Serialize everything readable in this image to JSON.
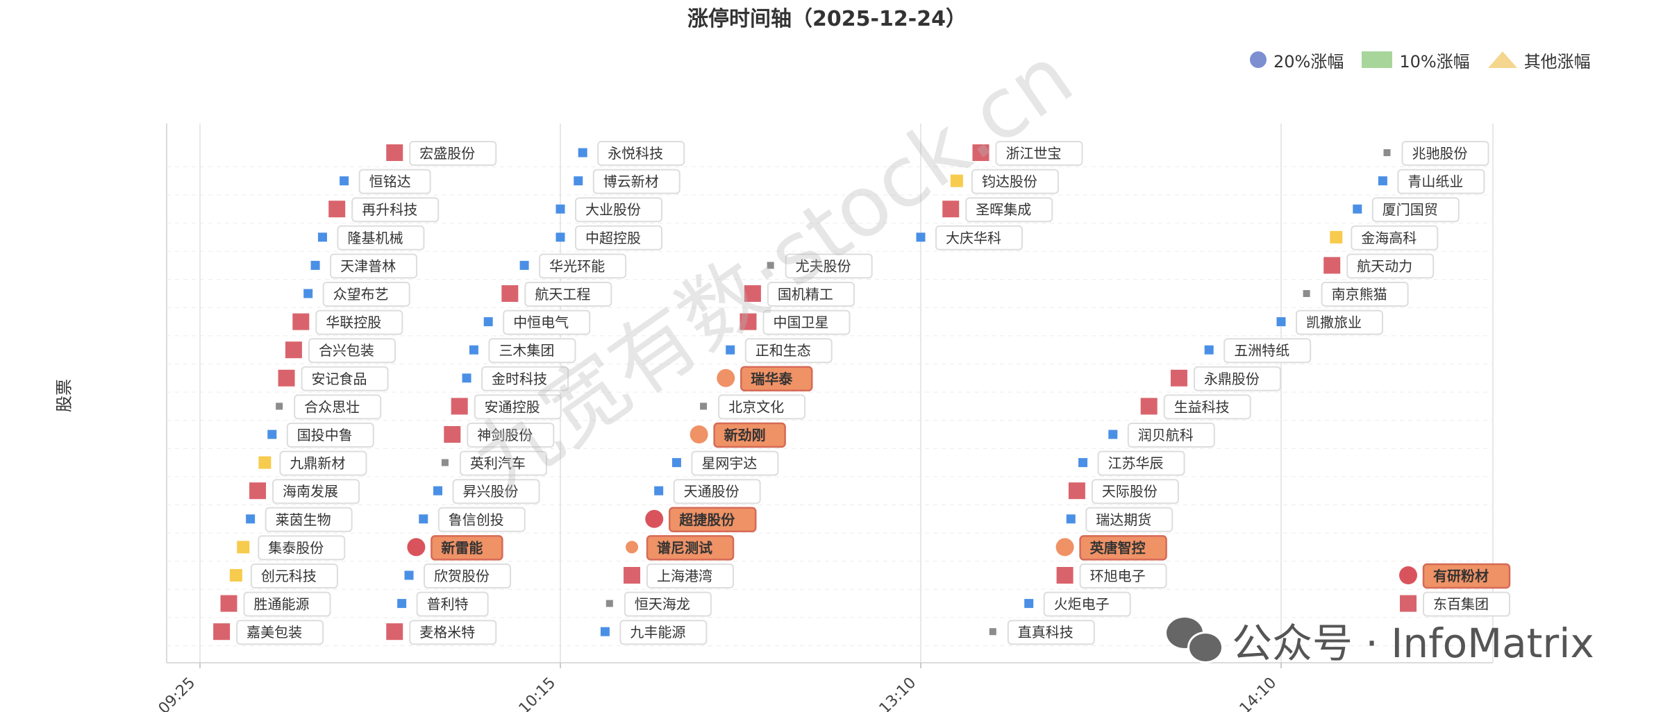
{
  "chart_data": {
    "type": "scatter",
    "title": "涨停时间轴（2025-12-24）",
    "ylabel": "股票",
    "x_ticks": [
      "09:25",
      "10:15",
      "13:10",
      "14:10"
    ],
    "legend": [
      {
        "name": "20%涨幅",
        "shape": "circle",
        "color": "#7b8fd1"
      },
      {
        "name": "10%涨幅",
        "shape": "rect",
        "color": "#a8d69a"
      },
      {
        "name": "其他涨幅",
        "shape": "triangle",
        "color": "#f5d68e"
      }
    ],
    "watermark": "九宽有数·stock.cn",
    "point_kinds": {
      "red": "#d9636c",
      "blue": "#4a8fe6",
      "yellow": "#f7cb4d",
      "gray": "#8c8c8c",
      "orange": "#ef9266",
      "circle_red": "#d9535d"
    },
    "points": [
      {
        "name": "宏盛股份",
        "time": "09:52",
        "row": 18,
        "kind": "red",
        "shape": "square"
      },
      {
        "name": "恒铭达",
        "time": "09:45",
        "row": 17,
        "kind": "blue",
        "shape": "square"
      },
      {
        "name": "再升科技",
        "time": "09:44",
        "row": 16,
        "kind": "red",
        "shape": "square"
      },
      {
        "name": "隆基机械",
        "time": "09:42",
        "row": 15,
        "kind": "blue",
        "shape": "square"
      },
      {
        "name": "天津普林",
        "time": "09:41",
        "row": 14,
        "kind": "blue",
        "shape": "square"
      },
      {
        "name": "众望布艺",
        "time": "09:40",
        "row": 13,
        "kind": "blue",
        "shape": "square"
      },
      {
        "name": "华联控股",
        "time": "09:39",
        "row": 12,
        "kind": "red",
        "shape": "square"
      },
      {
        "name": "合兴包装",
        "time": "09:38",
        "row": 11,
        "kind": "red",
        "shape": "square"
      },
      {
        "name": "安记食品",
        "time": "09:37",
        "row": 10,
        "kind": "red",
        "shape": "square"
      },
      {
        "name": "合众思壮",
        "time": "09:36",
        "row": 9,
        "kind": "gray",
        "shape": "square"
      },
      {
        "name": "国投中鲁",
        "time": "09:35",
        "row": 8,
        "kind": "blue",
        "shape": "square"
      },
      {
        "name": "九鼎新材",
        "time": "09:34",
        "row": 7,
        "kind": "yellow",
        "shape": "square"
      },
      {
        "name": "海南发展",
        "time": "09:33",
        "row": 6,
        "kind": "red",
        "shape": "square"
      },
      {
        "name": "莱茵生物",
        "time": "09:32",
        "row": 5,
        "kind": "blue",
        "shape": "square"
      },
      {
        "name": "集泰股份",
        "time": "09:31",
        "row": 4,
        "kind": "yellow",
        "shape": "square"
      },
      {
        "name": "创元科技",
        "time": "09:30",
        "row": 3,
        "kind": "yellow",
        "shape": "square"
      },
      {
        "name": "胜通能源",
        "time": "09:29",
        "row": 2,
        "kind": "red",
        "shape": "square"
      },
      {
        "name": "嘉美包装",
        "time": "09:28",
        "row": 1,
        "kind": "red",
        "shape": "square"
      },
      {
        "name": "麦格米特",
        "time": "09:52",
        "row": 1,
        "kind": "red",
        "shape": "square"
      },
      {
        "name": "普利特",
        "time": "09:53",
        "row": 2,
        "kind": "blue",
        "shape": "square"
      },
      {
        "name": "欣贺股份",
        "time": "09:54",
        "row": 3,
        "kind": "blue",
        "shape": "square"
      },
      {
        "name": "新雷能",
        "time": "09:55",
        "row": 4,
        "kind": "circle_red",
        "shape": "circle",
        "highlight": true
      },
      {
        "name": "鲁信创投",
        "time": "09:56",
        "row": 5,
        "kind": "blue",
        "shape": "square"
      },
      {
        "name": "昇兴股份",
        "time": "09:58",
        "row": 6,
        "kind": "blue",
        "shape": "square"
      },
      {
        "name": "英利汽车",
        "time": "09:59",
        "row": 7,
        "kind": "gray",
        "shape": "square"
      },
      {
        "name": "神剑股份",
        "time": "10:00",
        "row": 8,
        "kind": "red",
        "shape": "square"
      },
      {
        "name": "安通控股",
        "time": "10:01",
        "row": 9,
        "kind": "red",
        "shape": "square"
      },
      {
        "name": "金时科技",
        "time": "10:02",
        "row": 10,
        "kind": "blue",
        "shape": "square"
      },
      {
        "name": "三木集团",
        "time": "10:03",
        "row": 11,
        "kind": "blue",
        "shape": "square"
      },
      {
        "name": "中恒电气",
        "time": "10:05",
        "row": 12,
        "kind": "blue",
        "shape": "square"
      },
      {
        "name": "航天工程",
        "time": "10:08",
        "row": 13,
        "kind": "red",
        "shape": "square"
      },
      {
        "name": "华光环能",
        "time": "10:10",
        "row": 14,
        "kind": "blue",
        "shape": "square"
      },
      {
        "name": "中超控股",
        "time": "10:15",
        "row": 15,
        "kind": "blue",
        "shape": "square"
      },
      {
        "name": "大业股份",
        "time": "10:15",
        "row": 16,
        "kind": "blue",
        "shape": "square"
      },
      {
        "name": "博云新材",
        "time": "10:19",
        "row": 17,
        "kind": "blue",
        "shape": "square"
      },
      {
        "name": "永悦科技",
        "time": "10:20",
        "row": 18,
        "kind": "blue",
        "shape": "square"
      },
      {
        "name": "九丰能源",
        "time": "10:25",
        "row": 1,
        "kind": "blue",
        "shape": "square"
      },
      {
        "name": "恒天海龙",
        "time": "10:26",
        "row": 2,
        "kind": "gray",
        "shape": "square"
      },
      {
        "name": "上海港湾",
        "time": "10:31",
        "row": 3,
        "kind": "red",
        "shape": "square"
      },
      {
        "name": "谱尼测试",
        "time": "10:31",
        "row": 4,
        "kind": "orange",
        "shape": "circle",
        "small": true,
        "highlight": true
      },
      {
        "name": "超捷股份",
        "time": "10:36",
        "row": 5,
        "kind": "circle_red",
        "shape": "circle",
        "highlight": true
      },
      {
        "name": "天通股份",
        "time": "10:37",
        "row": 6,
        "kind": "blue",
        "shape": "square"
      },
      {
        "name": "星网宇达",
        "time": "10:41",
        "row": 7,
        "kind": "blue",
        "shape": "square"
      },
      {
        "name": "新劲刚",
        "time": "10:46",
        "row": 8,
        "kind": "orange",
        "shape": "circle",
        "highlight": true
      },
      {
        "name": "北京文化",
        "time": "10:47",
        "row": 9,
        "kind": "gray",
        "shape": "square"
      },
      {
        "name": "瑞华泰",
        "time": "10:52",
        "row": 10,
        "kind": "orange",
        "shape": "circle",
        "highlight": true
      },
      {
        "name": "正和生态",
        "time": "10:53",
        "row": 11,
        "kind": "blue",
        "shape": "square"
      },
      {
        "name": "中国卫星",
        "time": "10:57",
        "row": 12,
        "kind": "red",
        "shape": "square"
      },
      {
        "name": "国机精工",
        "time": "10:58",
        "row": 13,
        "kind": "red",
        "shape": "square"
      },
      {
        "name": "尤夫股份",
        "time": "11:02",
        "row": 14,
        "kind": "gray",
        "shape": "square"
      },
      {
        "name": "大庆华科",
        "time": "13:10",
        "row": 15,
        "kind": "blue",
        "shape": "square"
      },
      {
        "name": "圣晖集成",
        "time": "13:15",
        "row": 16,
        "kind": "red",
        "shape": "square"
      },
      {
        "name": "钧达股份",
        "time": "13:16",
        "row": 17,
        "kind": "yellow",
        "shape": "square"
      },
      {
        "name": "浙江世宝",
        "time": "13:20",
        "row": 18,
        "kind": "red",
        "shape": "square"
      },
      {
        "name": "直真科技",
        "time": "13:22",
        "row": 1,
        "kind": "gray",
        "shape": "square"
      },
      {
        "name": "火炬电子",
        "time": "13:28",
        "row": 2,
        "kind": "blue",
        "shape": "square"
      },
      {
        "name": "环旭电子",
        "time": "13:34",
        "row": 3,
        "kind": "red",
        "shape": "square"
      },
      {
        "name": "英唐智控",
        "time": "13:34",
        "row": 4,
        "kind": "orange",
        "shape": "circle",
        "highlight": true
      },
      {
        "name": "瑞达期货",
        "time": "13:35",
        "row": 5,
        "kind": "blue",
        "shape": "square"
      },
      {
        "name": "天际股份",
        "time": "13:36",
        "row": 6,
        "kind": "red",
        "shape": "square"
      },
      {
        "name": "江苏华辰",
        "time": "13:37",
        "row": 7,
        "kind": "blue",
        "shape": "square"
      },
      {
        "name": "润贝航科",
        "time": "13:42",
        "row": 8,
        "kind": "blue",
        "shape": "square"
      },
      {
        "name": "生益科技",
        "time": "13:48",
        "row": 9,
        "kind": "red",
        "shape": "square"
      },
      {
        "name": "永鼎股份",
        "time": "13:53",
        "row": 10,
        "kind": "red",
        "shape": "square"
      },
      {
        "name": "五洲特纸",
        "time": "13:58",
        "row": 11,
        "kind": "blue",
        "shape": "square"
      },
      {
        "name": "凯撒旅业",
        "time": "14:10",
        "row": 12,
        "kind": "blue",
        "shape": "square"
      },
      {
        "name": "南京熊猫",
        "time": "14:16",
        "row": 13,
        "kind": "gray",
        "shape": "square"
      },
      {
        "name": "航天动力",
        "time": "14:22",
        "row": 14,
        "kind": "red",
        "shape": "square"
      },
      {
        "name": "金海高科",
        "time": "14:23",
        "row": 15,
        "kind": "yellow",
        "shape": "square"
      },
      {
        "name": "厦门国贸",
        "time": "14:28",
        "row": 16,
        "kind": "blue",
        "shape": "square"
      },
      {
        "name": "青山纸业",
        "time": "14:34",
        "row": 17,
        "kind": "blue",
        "shape": "square"
      },
      {
        "name": "兆驰股份",
        "time": "14:35",
        "row": 18,
        "kind": "gray",
        "shape": "square"
      },
      {
        "name": "有研粉材",
        "time": "14:40",
        "row": 3,
        "kind": "circle_red",
        "shape": "circle",
        "highlight": true
      },
      {
        "name": "东百集团",
        "time": "14:40",
        "row": 2,
        "kind": "red",
        "shape": "square"
      }
    ]
  },
  "wechat": {
    "label": "公众号 · InfoMatrix"
  }
}
